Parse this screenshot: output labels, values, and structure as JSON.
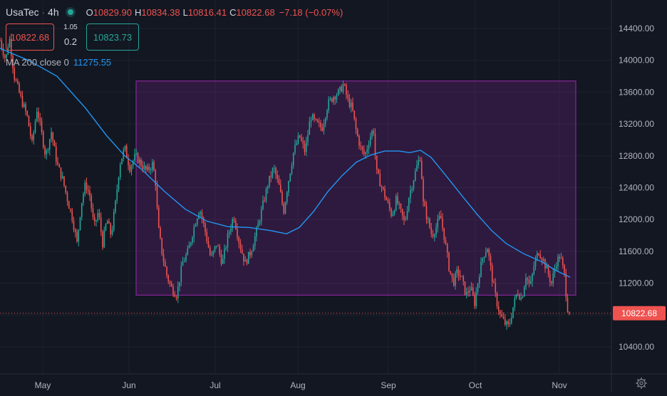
{
  "header": {
    "symbol": "UsaTec",
    "separator": "·",
    "timeframe": "4h",
    "open_label": "O",
    "open": "10829.90",
    "high_label": "H",
    "high": "10834.38",
    "low_label": "L",
    "low": "10816.41",
    "close_label": "C",
    "close": "10822.68",
    "change": "−7.18 (−0.07%)"
  },
  "trade": {
    "sell_price": "10822.68",
    "spread_top": "1.05",
    "spread_bottom": "0.2",
    "buy_price": "10823.73"
  },
  "indicator": {
    "label": "MA 200 close 0",
    "value": "11275.55"
  },
  "colors": {
    "background": "#131722",
    "up": "#26a69a",
    "down": "#ef5350",
    "ma": "#2196f3",
    "rectangle_border": "#9c27b0",
    "rectangle_fill": "rgba(156,39,176,0.2)"
  },
  "icons": {
    "settings": "gear-icon",
    "live": "live-dot-icon"
  },
  "chart_data": {
    "type": "candlestick",
    "price_axis": {
      "ticks": [
        14400,
        14000,
        13600,
        13200,
        12800,
        12400,
        12000,
        11600,
        11200,
        10400
      ],
      "tick_labels": [
        "14400.00",
        "14000.00",
        "13600.00",
        "13200.00",
        "12800.00",
        "12400.00",
        "12000.00",
        "11600.00",
        "11200.00",
        "10400.00"
      ],
      "last_price": 10822.68,
      "last_price_label": "10822.68"
    },
    "time_axis": {
      "labels": [
        "May",
        "Jun",
        "Jul",
        "Aug",
        "Sep",
        "Oct",
        "Nov"
      ]
    },
    "series": {
      "price": {
        "points": [
          {
            "t": 0,
            "p": 14250
          },
          {
            "t": 8,
            "p": 14000
          },
          {
            "t": 13,
            "p": 14300
          },
          {
            "t": 20,
            "p": 13800
          },
          {
            "t": 30,
            "p": 13500
          },
          {
            "t": 38,
            "p": 13300
          },
          {
            "t": 45,
            "p": 12950
          },
          {
            "t": 52,
            "p": 13400
          },
          {
            "t": 58,
            "p": 13100
          },
          {
            "t": 64,
            "p": 12800
          },
          {
            "t": 72,
            "p": 13100
          },
          {
            "t": 80,
            "p": 12700
          },
          {
            "t": 88,
            "p": 12500
          },
          {
            "t": 96,
            "p": 12200
          },
          {
            "t": 102,
            "p": 12000
          },
          {
            "t": 108,
            "p": 11700
          },
          {
            "t": 114,
            "p": 12200
          },
          {
            "t": 120,
            "p": 12450
          },
          {
            "t": 126,
            "p": 12300
          },
          {
            "t": 132,
            "p": 11900
          },
          {
            "t": 138,
            "p": 12100
          },
          {
            "t": 144,
            "p": 11700
          },
          {
            "t": 150,
            "p": 12000
          },
          {
            "t": 156,
            "p": 11800
          },
          {
            "t": 162,
            "p": 12200
          },
          {
            "t": 168,
            "p": 12700
          },
          {
            "t": 175,
            "p": 12900
          },
          {
            "t": 182,
            "p": 12650
          },
          {
            "t": 190,
            "p": 12800
          },
          {
            "t": 198,
            "p": 12700
          },
          {
            "t": 206,
            "p": 12600
          },
          {
            "t": 214,
            "p": 12700
          },
          {
            "t": 218,
            "p": 12500
          },
          {
            "t": 222,
            "p": 11900
          },
          {
            "t": 228,
            "p": 11550
          },
          {
            "t": 234,
            "p": 11300
          },
          {
            "t": 240,
            "p": 11150
          },
          {
            "t": 248,
            "p": 11050
          },
          {
            "t": 256,
            "p": 11450
          },
          {
            "t": 264,
            "p": 11600
          },
          {
            "t": 272,
            "p": 11900
          },
          {
            "t": 280,
            "p": 12150
          },
          {
            "t": 288,
            "p": 11850
          },
          {
            "t": 296,
            "p": 11500
          },
          {
            "t": 304,
            "p": 11700
          },
          {
            "t": 312,
            "p": 11450
          },
          {
            "t": 320,
            "p": 11800
          },
          {
            "t": 328,
            "p": 12050
          },
          {
            "t": 336,
            "p": 11700
          },
          {
            "t": 344,
            "p": 11450
          },
          {
            "t": 352,
            "p": 11600
          },
          {
            "t": 360,
            "p": 11850
          },
          {
            "t": 368,
            "p": 12150
          },
          {
            "t": 376,
            "p": 12450
          },
          {
            "t": 384,
            "p": 12650
          },
          {
            "t": 392,
            "p": 12400
          },
          {
            "t": 398,
            "p": 12100
          },
          {
            "t": 404,
            "p": 12450
          },
          {
            "t": 412,
            "p": 12850
          },
          {
            "t": 420,
            "p": 13050
          },
          {
            "t": 428,
            "p": 12850
          },
          {
            "t": 436,
            "p": 13300
          },
          {
            "t": 444,
            "p": 13200
          },
          {
            "t": 452,
            "p": 13150
          },
          {
            "t": 460,
            "p": 13450
          },
          {
            "t": 468,
            "p": 13550
          },
          {
            "t": 476,
            "p": 13600
          },
          {
            "t": 482,
            "p": 13700
          },
          {
            "t": 488,
            "p": 13500
          },
          {
            "t": 494,
            "p": 13400
          },
          {
            "t": 500,
            "p": 13100
          },
          {
            "t": 506,
            "p": 12900
          },
          {
            "t": 512,
            "p": 12800
          },
          {
            "t": 518,
            "p": 13000
          },
          {
            "t": 524,
            "p": 13150
          },
          {
            "t": 528,
            "p": 12600
          },
          {
            "t": 532,
            "p": 12500
          },
          {
            "t": 538,
            "p": 12350
          },
          {
            "t": 544,
            "p": 12200
          },
          {
            "t": 550,
            "p": 12050
          },
          {
            "t": 556,
            "p": 12250
          },
          {
            "t": 562,
            "p": 12100
          },
          {
            "t": 568,
            "p": 11950
          },
          {
            "t": 574,
            "p": 12300
          },
          {
            "t": 580,
            "p": 12500
          },
          {
            "t": 586,
            "p": 12700
          },
          {
            "t": 590,
            "p": 12800
          },
          {
            "t": 594,
            "p": 12200
          },
          {
            "t": 600,
            "p": 12000
          },
          {
            "t": 606,
            "p": 11800
          },
          {
            "t": 612,
            "p": 11900
          },
          {
            "t": 618,
            "p": 12050
          },
          {
            "t": 624,
            "p": 11750
          },
          {
            "t": 630,
            "p": 11400
          },
          {
            "t": 636,
            "p": 11200
          },
          {
            "t": 642,
            "p": 11350
          },
          {
            "t": 648,
            "p": 11250
          },
          {
            "t": 654,
            "p": 11050
          },
          {
            "t": 660,
            "p": 11150
          },
          {
            "t": 666,
            "p": 10950
          },
          {
            "t": 672,
            "p": 11300
          },
          {
            "t": 678,
            "p": 11550
          },
          {
            "t": 684,
            "p": 11650
          },
          {
            "t": 690,
            "p": 11300
          },
          {
            "t": 696,
            "p": 11000
          },
          {
            "t": 702,
            "p": 10800
          },
          {
            "t": 708,
            "p": 10700
          },
          {
            "t": 714,
            "p": 10650
          },
          {
            "t": 720,
            "p": 10900
          },
          {
            "t": 726,
            "p": 11100
          },
          {
            "t": 732,
            "p": 11000
          },
          {
            "t": 738,
            "p": 11300
          },
          {
            "t": 744,
            "p": 11150
          },
          {
            "t": 750,
            "p": 11450
          },
          {
            "t": 756,
            "p": 11600
          },
          {
            "t": 762,
            "p": 11500
          },
          {
            "t": 768,
            "p": 11350
          },
          {
            "t": 774,
            "p": 11200
          },
          {
            "t": 780,
            "p": 11450
          },
          {
            "t": 786,
            "p": 11550
          },
          {
            "t": 792,
            "p": 11300
          },
          {
            "t": 796,
            "p": 10900
          },
          {
            "t": 800,
            "p": 10822
          }
        ]
      },
      "ma": {
        "name": "MA 200 close 0",
        "points": [
          {
            "t": 0,
            "p": 14150
          },
          {
            "t": 40,
            "p": 14000
          },
          {
            "t": 80,
            "p": 13800
          },
          {
            "t": 120,
            "p": 13400
          },
          {
            "t": 150,
            "p": 13050
          },
          {
            "t": 175,
            "p": 12800
          },
          {
            "t": 200,
            "p": 12620
          },
          {
            "t": 230,
            "p": 12360
          },
          {
            "t": 260,
            "p": 12130
          },
          {
            "t": 290,
            "p": 11980
          },
          {
            "t": 320,
            "p": 11910
          },
          {
            "t": 350,
            "p": 11900
          },
          {
            "t": 380,
            "p": 11860
          },
          {
            "t": 402,
            "p": 11820
          },
          {
            "t": 420,
            "p": 11900
          },
          {
            "t": 440,
            "p": 12100
          },
          {
            "t": 460,
            "p": 12350
          },
          {
            "t": 480,
            "p": 12550
          },
          {
            "t": 500,
            "p": 12720
          },
          {
            "t": 520,
            "p": 12810
          },
          {
            "t": 540,
            "p": 12860
          },
          {
            "t": 560,
            "p": 12860
          },
          {
            "t": 575,
            "p": 12840
          },
          {
            "t": 590,
            "p": 12870
          },
          {
            "t": 605,
            "p": 12780
          },
          {
            "t": 625,
            "p": 12560
          },
          {
            "t": 650,
            "p": 12280
          },
          {
            "t": 670,
            "p": 12060
          },
          {
            "t": 690,
            "p": 11860
          },
          {
            "t": 710,
            "p": 11700
          },
          {
            "t": 735,
            "p": 11570
          },
          {
            "t": 760,
            "p": 11470
          },
          {
            "t": 780,
            "p": 11360
          },
          {
            "t": 800,
            "p": 11275
          }
        ]
      }
    },
    "rectangle": {
      "from_price": 13740,
      "to_price": 11050
    }
  }
}
